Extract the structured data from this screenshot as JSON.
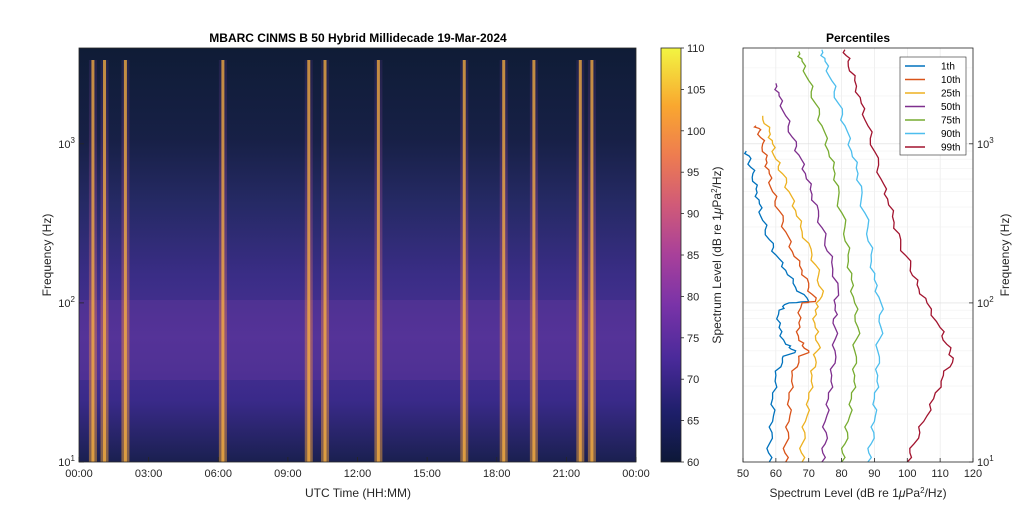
{
  "spectrogram": {
    "title": "MBARC CINMS B 50 Hybrid Millidecade 19-Mar-2024",
    "xlabel": "UTC Time (HH:MM)",
    "ylabel": "Frequency (Hz)",
    "x_ticks": [
      "00:00",
      "03:00",
      "06:00",
      "09:00",
      "12:00",
      "15:00",
      "18:00",
      "21:00",
      "00:00"
    ],
    "y_ticks": [
      {
        "base": "10",
        "exp": "1"
      },
      {
        "base": "10",
        "exp": "2"
      },
      {
        "base": "10",
        "exp": "3"
      }
    ],
    "colorbar": {
      "label_prefix": "Spectrum Level (dB re 1",
      "label_mu": "μ",
      "label_pa": "Pa",
      "label_sup": "2",
      "label_suffix": "/Hz)",
      "ticks": [
        "60",
        "65",
        "70",
        "75",
        "80",
        "85",
        "90",
        "95",
        "100",
        "105",
        "110"
      ],
      "range": [
        60,
        110
      ],
      "colormap": "plasma"
    },
    "bright_bands_hours": [
      0.6,
      1.1,
      2.0,
      6.2,
      9.9,
      10.6,
      12.9,
      16.6,
      18.3,
      19.6,
      21.6,
      22.1
    ]
  },
  "percentiles_panel": {
    "title": "Percentiles",
    "xlabel_prefix": "Spectrum Level (dB re 1",
    "xlabel_mu": "μ",
    "xlabel_pa": "Pa",
    "xlabel_sup": "2",
    "xlabel_suffix": "/Hz)",
    "ylabel": "Frequency (Hz)",
    "x_ticks": [
      "50",
      "60",
      "70",
      "80",
      "90",
      "100",
      "110",
      "120"
    ],
    "y_ticks": [
      {
        "base": "10",
        "exp": "1"
      },
      {
        "base": "10",
        "exp": "2"
      },
      {
        "base": "10",
        "exp": "3"
      }
    ],
    "xlim": [
      50,
      120
    ],
    "ylim_hz": [
      10,
      4000
    ]
  },
  "chart_data": {
    "type": "line",
    "xlim": [
      50,
      120
    ],
    "y_scale": "log",
    "series": [
      {
        "name": "1th",
        "color": "#0072bd",
        "points": [
          [
            58,
            10
          ],
          [
            58,
            13
          ],
          [
            59,
            18
          ],
          [
            59,
            25
          ],
          [
            60,
            35
          ],
          [
            62,
            45
          ],
          [
            66,
            50
          ],
          [
            63,
            55
          ],
          [
            61,
            70
          ],
          [
            61,
            90
          ],
          [
            64,
            100
          ],
          [
            70,
            102
          ],
          [
            66,
            125
          ],
          [
            63,
            160
          ],
          [
            60,
            200
          ],
          [
            58,
            250
          ],
          [
            56,
            330
          ],
          [
            55,
            420
          ],
          [
            54,
            520
          ],
          [
            53,
            650
          ],
          [
            52,
            780
          ],
          [
            51,
            900
          ]
        ]
      },
      {
        "name": "10th",
        "color": "#d95319",
        "points": [
          [
            63,
            10
          ],
          [
            63,
            13
          ],
          [
            64,
            18
          ],
          [
            64,
            25
          ],
          [
            65,
            35
          ],
          [
            67,
            45
          ],
          [
            70,
            50
          ],
          [
            67,
            58
          ],
          [
            67,
            75
          ],
          [
            68,
            100
          ],
          [
            72,
            102
          ],
          [
            70,
            125
          ],
          [
            68,
            160
          ],
          [
            65,
            210
          ],
          [
            63,
            280
          ],
          [
            61,
            380
          ],
          [
            59,
            500
          ],
          [
            58,
            650
          ],
          [
            57,
            800
          ],
          [
            56,
            1000
          ],
          [
            55,
            1200
          ],
          [
            54,
            1300
          ]
        ]
      },
      {
        "name": "25th",
        "color": "#edb120",
        "points": [
          [
            68,
            10
          ],
          [
            68,
            13
          ],
          [
            69,
            18
          ],
          [
            70,
            25
          ],
          [
            71,
            35
          ],
          [
            72,
            45
          ],
          [
            73,
            55
          ],
          [
            72,
            70
          ],
          [
            72,
            90
          ],
          [
            74,
            110
          ],
          [
            73,
            150
          ],
          [
            71,
            200
          ],
          [
            68,
            280
          ],
          [
            66,
            380
          ],
          [
            64,
            500
          ],
          [
            62,
            650
          ],
          [
            60,
            800
          ],
          [
            59,
            1000
          ],
          [
            58,
            1200
          ],
          [
            56,
            1500
          ]
        ]
      },
      {
        "name": "50th",
        "color": "#7e2f8e",
        "points": [
          [
            74,
            10
          ],
          [
            75,
            13
          ],
          [
            75,
            18
          ],
          [
            76,
            25
          ],
          [
            77,
            35
          ],
          [
            78,
            50
          ],
          [
            78,
            70
          ],
          [
            78,
            90
          ],
          [
            79,
            120
          ],
          [
            77,
            180
          ],
          [
            75,
            250
          ],
          [
            73,
            350
          ],
          [
            71,
            480
          ],
          [
            69,
            650
          ],
          [
            67,
            850
          ],
          [
            65,
            1100
          ],
          [
            63,
            1500
          ],
          [
            61,
            2000
          ],
          [
            60,
            2400
          ]
        ]
      },
      {
        "name": "75th",
        "color": "#77ac30",
        "points": [
          [
            80,
            10
          ],
          [
            81,
            13
          ],
          [
            82,
            18
          ],
          [
            83,
            25
          ],
          [
            84,
            35
          ],
          [
            84,
            50
          ],
          [
            85,
            70
          ],
          [
            84,
            100
          ],
          [
            83,
            140
          ],
          [
            82,
            200
          ],
          [
            81,
            300
          ],
          [
            79,
            450
          ],
          [
            78,
            650
          ],
          [
            76,
            900
          ],
          [
            74,
            1300
          ],
          [
            72,
            1800
          ],
          [
            70,
            2500
          ],
          [
            68,
            3300
          ],
          [
            67,
            3800
          ]
        ]
      },
      {
        "name": "90th",
        "color": "#4dbeee",
        "points": [
          [
            88,
            10
          ],
          [
            89,
            13
          ],
          [
            90,
            18
          ],
          [
            90,
            25
          ],
          [
            91,
            35
          ],
          [
            91,
            50
          ],
          [
            92,
            70
          ],
          [
            92,
            100
          ],
          [
            90,
            140
          ],
          [
            89,
            200
          ],
          [
            88,
            300
          ],
          [
            86,
            450
          ],
          [
            85,
            650
          ],
          [
            83,
            900
          ],
          [
            81,
            1300
          ],
          [
            79,
            1800
          ],
          [
            77,
            2500
          ],
          [
            75,
            3300
          ],
          [
            74,
            3900
          ]
        ]
      },
      {
        "name": "99th",
        "color": "#a2142f",
        "points": [
          [
            100,
            10
          ],
          [
            102,
            13
          ],
          [
            105,
            18
          ],
          [
            108,
            25
          ],
          [
            111,
            35
          ],
          [
            114,
            45
          ],
          [
            112,
            55
          ],
          [
            110,
            70
          ],
          [
            106,
            100
          ],
          [
            103,
            130
          ],
          [
            101,
            170
          ],
          [
            98,
            230
          ],
          [
            96,
            320
          ],
          [
            94,
            450
          ],
          [
            92,
            600
          ],
          [
            90,
            900
          ],
          [
            88,
            1300
          ],
          [
            86,
            1800
          ],
          [
            84,
            2500
          ],
          [
            82,
            3300
          ],
          [
            81,
            3900
          ]
        ]
      }
    ]
  }
}
